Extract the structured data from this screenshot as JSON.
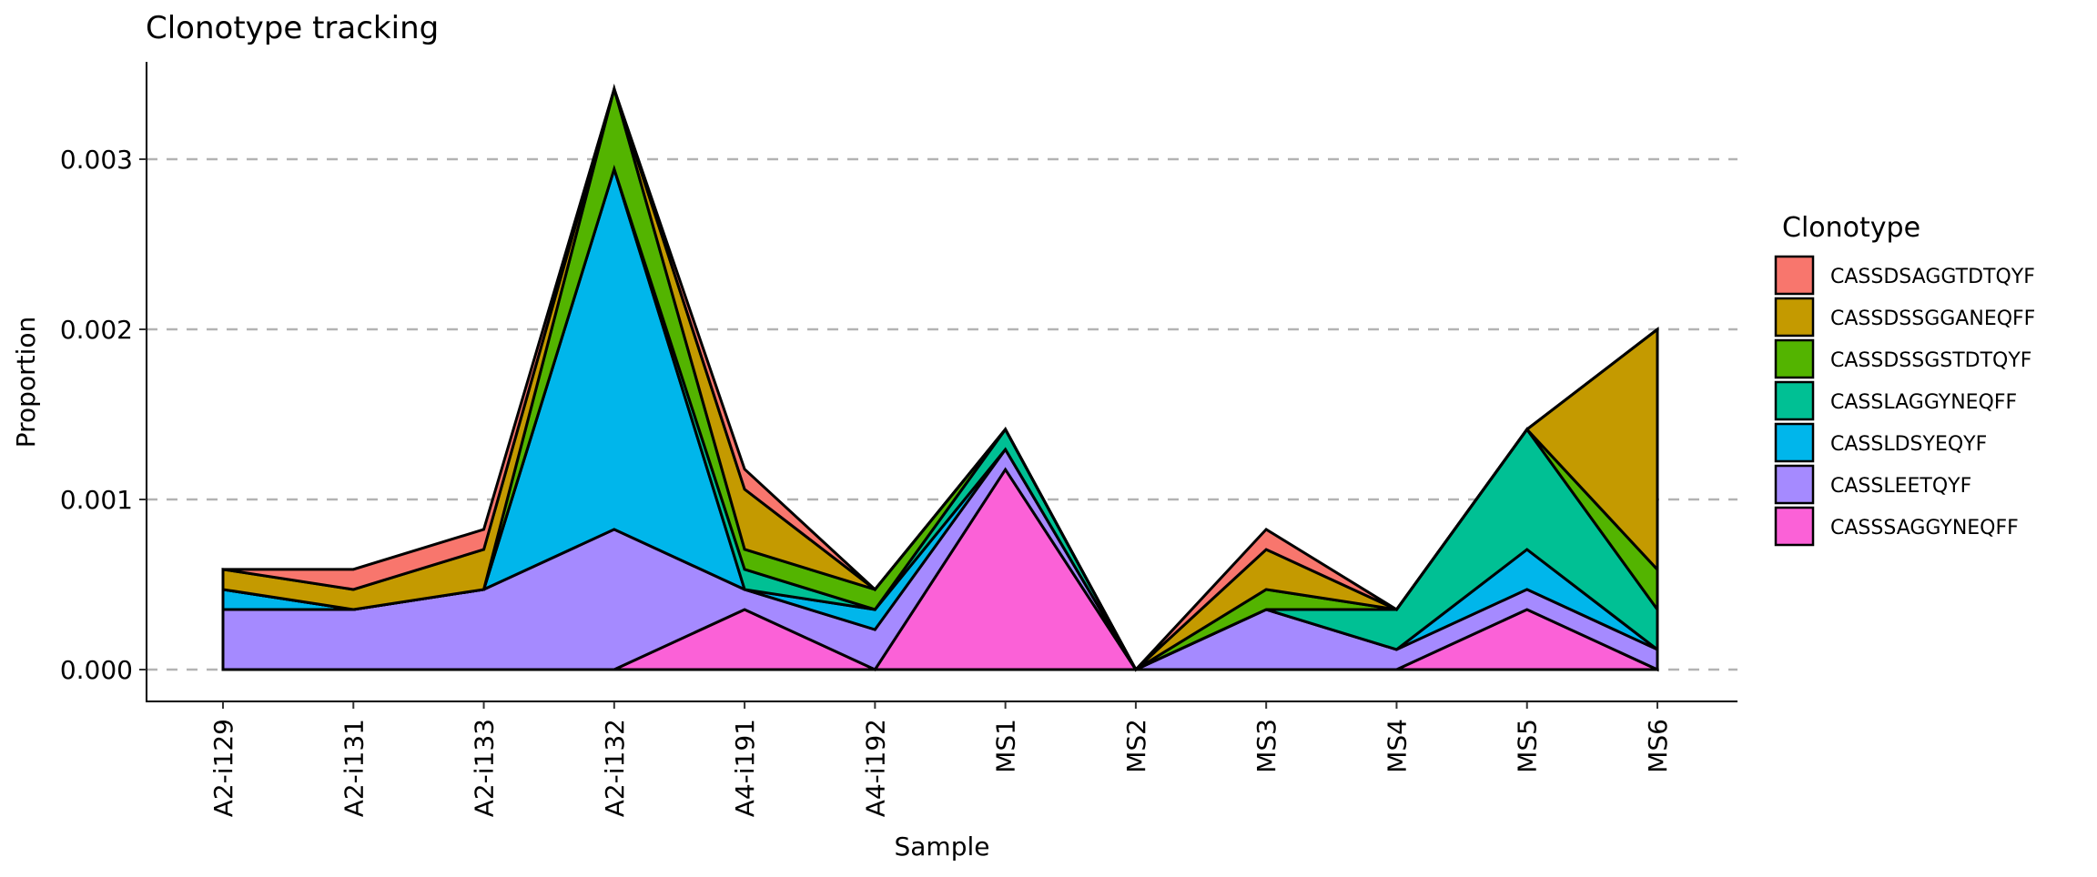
{
  "chart_data": {
    "type": "area",
    "stacked": true,
    "title": "Clonotype tracking",
    "xlabel": "Sample",
    "ylabel": "Proportion",
    "ylim": [
      0,
      0.0035
    ],
    "yticks": [
      0,
      0.001,
      0.002,
      0.003
    ],
    "ytick_labels": [
      "0.000",
      "0.001",
      "0.002",
      "0.003"
    ],
    "grid": "horizontal dashed",
    "categories": [
      "A2-i129",
      "A2-i131",
      "A2-i133",
      "A2-i132",
      "A4-i191",
      "A4-i192",
      "MS1",
      "MS2",
      "MS3",
      "MS4",
      "MS5",
      "MS6"
    ],
    "legend": {
      "title": "Clonotype",
      "placement": "right"
    },
    "series": [
      {
        "name": "CASSDSAGGTDTQYF",
        "color": "#F8766D",
        "values": [
          0,
          0.000118,
          0.000118,
          0,
          0.000118,
          0,
          0,
          0,
          0.000118,
          0,
          0,
          0
        ]
      },
      {
        "name": "CASSDSSGGANEQFF",
        "color": "#C49A00",
        "values": [
          0.000118,
          0.000118,
          0.000235,
          0,
          0.000353,
          0,
          0,
          0,
          0.000235,
          0,
          0,
          0.001412
        ]
      },
      {
        "name": "CASSDSSGSTDTQYF",
        "color": "#53B400",
        "values": [
          0,
          0,
          0,
          0.000471,
          0.000118,
          0.000118,
          0,
          0,
          0.000118,
          0,
          0,
          0.000235
        ]
      },
      {
        "name": "CASSLAGGYNEQFF",
        "color": "#00C094",
        "values": [
          0,
          0,
          0,
          0,
          0.000118,
          0,
          0.000118,
          0,
          0,
          0.000235,
          0.000706,
          0.000235
        ]
      },
      {
        "name": "CASSLDSYEQYF",
        "color": "#00B6EB",
        "values": [
          0.000118,
          0,
          0,
          0.002118,
          0,
          0.000118,
          0,
          0,
          0,
          0,
          0.000235,
          0
        ]
      },
      {
        "name": "CASSLEETQYF",
        "color": "#A58AFF",
        "values": [
          0.000353,
          0.000353,
          0.000471,
          0.000824,
          0.000118,
          0.000235,
          0.000118,
          0,
          0.000353,
          0.000118,
          0.000118,
          0.000118
        ]
      },
      {
        "name": "CASSSAGGYNEQFF",
        "color": "#FB61D7",
        "values": [
          0,
          0,
          0,
          0,
          0.000353,
          0,
          0.001176,
          0,
          0,
          0,
          0.000353,
          0
        ]
      }
    ]
  }
}
